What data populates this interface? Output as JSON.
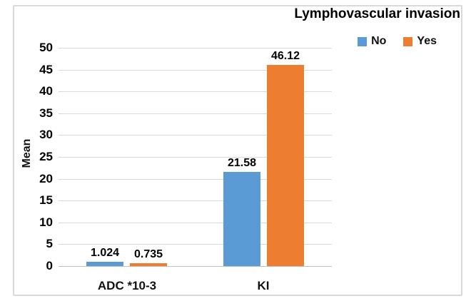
{
  "chart_data": {
    "type": "bar",
    "title": "Lymphovascular invasion",
    "xlabel": "",
    "ylabel": "Mean",
    "categories": [
      "ADC *10-3",
      "KI"
    ],
    "series": [
      {
        "name": "No",
        "color": "#5B9BD5",
        "values": [
          1.024,
          21.58
        ],
        "value_labels": [
          "1.024",
          "21.58"
        ]
      },
      {
        "name": "Yes",
        "color": "#ED7D31",
        "values": [
          0.735,
          46.12
        ],
        "value_labels": [
          "0.735",
          "46.12"
        ]
      }
    ],
    "ylim": [
      0,
      50
    ],
    "ytick_step": 5,
    "yticks": [
      0,
      5,
      10,
      15,
      20,
      25,
      30,
      35,
      40,
      45,
      50
    ],
    "grid": true,
    "data_labels": true,
    "legend_position": "top-right",
    "colors": {
      "series_no": "#5B9BD5",
      "series_yes": "#ED7D31",
      "gridline": "#D9D9D9",
      "chart_border": "#D9D9D9",
      "axis_line": "#BFBFBF",
      "text": "#000000",
      "background": "#FFFFFF"
    }
  }
}
